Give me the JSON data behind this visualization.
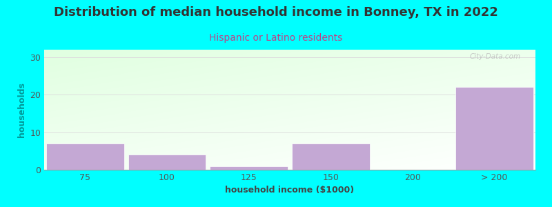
{
  "title": "Distribution of median household income in Bonney, TX in 2022",
  "subtitle": "Hispanic or Latino residents",
  "xlabel": "household income ($1000)",
  "ylabel": "households",
  "categories": [
    "75",
    "100",
    "125",
    "150",
    "200",
    "> 200"
  ],
  "values": [
    7,
    4,
    1,
    7,
    0,
    22
  ],
  "bar_color": "#C4A8D4",
  "background_color": "#00FFFF",
  "plot_bg_top_left": "#DDFADD",
  "plot_bg_bottom_right": "#FFFFFF",
  "title_color": "#333333",
  "subtitle_color": "#BB4488",
  "ylabel_color": "#009999",
  "xlabel_color": "#444444",
  "tick_color": "#555555",
  "grid_color": "#DDDDDD",
  "ylim": [
    0,
    32
  ],
  "yticks": [
    0,
    10,
    20,
    30
  ],
  "title_fontsize": 13,
  "subtitle_fontsize": 10,
  "axis_label_fontsize": 9,
  "tick_fontsize": 9,
  "watermark": "City-Data.com"
}
